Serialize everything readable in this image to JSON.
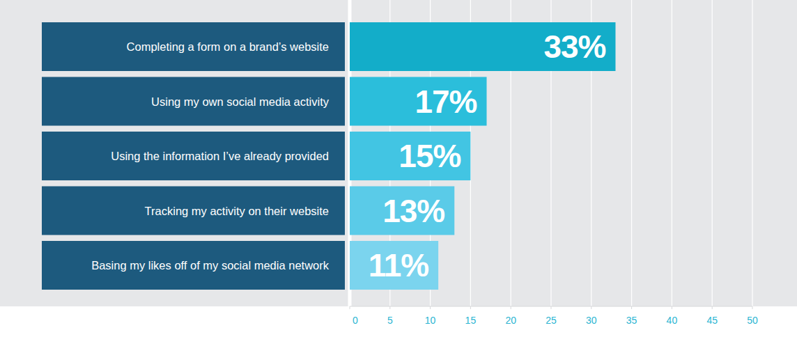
{
  "chart_data": {
    "type": "bar",
    "orientation": "horizontal",
    "categories": [
      "Completing a form on a brand’s website",
      "Using my own social media activity",
      "Using the information I’ve already provided",
      "Tracking my activity on their website",
      "Basing my likes off of my social media network"
    ],
    "values": [
      33,
      17,
      15,
      13,
      11
    ],
    "value_labels": [
      "33%",
      "17%",
      "15%",
      "13%",
      "11%"
    ],
    "colors": [
      "#13adc9",
      "#2bbedb",
      "#42c5e3",
      "#5acbe8",
      "#7bd4ee"
    ],
    "xlim": [
      0,
      50
    ],
    "xticks": [
      0,
      5,
      10,
      15,
      20,
      25,
      30,
      35,
      40,
      45,
      50
    ],
    "grid": true,
    "data_labels": true
  }
}
